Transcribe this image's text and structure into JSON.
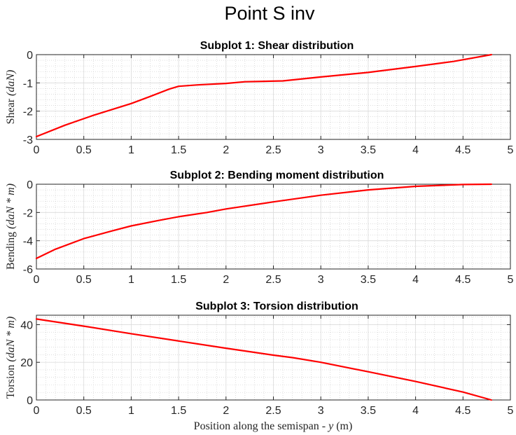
{
  "figure_title": "Point S inv",
  "x_axis_label_text": "Position along the semispan - ",
  "x_axis_label_var": "y",
  "x_axis_label_unit": " (m)",
  "colors": {
    "line": "#ff0000",
    "axis": "#262626",
    "grid_major": "#dcdcdc",
    "grid_minor": "#c8c8c8"
  },
  "chart_data": [
    {
      "type": "line",
      "title": "Subplot 1: Shear distribution",
      "ylabel_text": "Shear ",
      "ylabel_unit": "(daN)",
      "xlim": [
        0,
        5
      ],
      "ylim": [
        -3,
        0
      ],
      "xticks": [
        0,
        0.5,
        1,
        1.5,
        2,
        2.5,
        3,
        3.5,
        4,
        4.5,
        5
      ],
      "yticks": [
        -3,
        -2,
        -1,
        0
      ],
      "ytick_labels": [
        "-3",
        "-2",
        "-1",
        "0"
      ],
      "grid": true,
      "minor_grid": true,
      "x": [
        0,
        0.3,
        0.6,
        1.0,
        1.2,
        1.4,
        1.5,
        1.7,
        2.0,
        2.2,
        2.6,
        3.0,
        3.5,
        4.0,
        4.4,
        4.8
      ],
      "y": [
        -2.9,
        -2.5,
        -2.15,
        -1.73,
        -1.48,
        -1.22,
        -1.12,
        -1.07,
        -1.02,
        -0.96,
        -0.93,
        -0.79,
        -0.63,
        -0.42,
        -0.24,
        0.0
      ]
    },
    {
      "type": "line",
      "title": "Subplot 2: Bending moment distribution",
      "ylabel_text": "Bending ",
      "ylabel_unit": "(daN * m)",
      "xlim": [
        0,
        5
      ],
      "ylim": [
        -6,
        0
      ],
      "xticks": [
        0,
        0.5,
        1,
        1.5,
        2,
        2.5,
        3,
        3.5,
        4,
        4.5,
        5
      ],
      "yticks": [
        -6,
        -4,
        -2,
        0
      ],
      "ytick_labels": [
        "-6",
        "-4",
        "-2",
        "0"
      ],
      "grid": true,
      "minor_grid": true,
      "x": [
        0,
        0.2,
        0.5,
        0.8,
        1.0,
        1.3,
        1.5,
        1.8,
        2.0,
        2.5,
        3.0,
        3.5,
        4.0,
        4.5,
        4.8
      ],
      "y": [
        -5.25,
        -4.6,
        -3.85,
        -3.3,
        -2.95,
        -2.55,
        -2.3,
        -2.0,
        -1.75,
        -1.25,
        -0.78,
        -0.4,
        -0.15,
        -0.02,
        0.0
      ]
    },
    {
      "type": "line",
      "title": "Subplot 3: Torsion distribution",
      "ylabel_text": "Torsion ",
      "ylabel_unit": "(daN * m)",
      "xlim": [
        0,
        5
      ],
      "ylim": [
        0,
        45
      ],
      "xticks": [
        0,
        0.5,
        1,
        1.5,
        2,
        2.5,
        3,
        3.5,
        4,
        4.5,
        5
      ],
      "yticks": [
        0,
        20,
        40
      ],
      "ytick_labels": [
        "0",
        "20",
        "40"
      ],
      "grid": true,
      "minor_grid": true,
      "x": [
        0,
        0.5,
        1.0,
        1.5,
        2.0,
        2.5,
        2.7,
        3.0,
        3.5,
        4.0,
        4.5,
        4.8
      ],
      "y": [
        43,
        39.2,
        35.2,
        31.3,
        27.5,
        23.8,
        22.5,
        20.0,
        15.0,
        9.8,
        4.2,
        0.0
      ]
    }
  ]
}
